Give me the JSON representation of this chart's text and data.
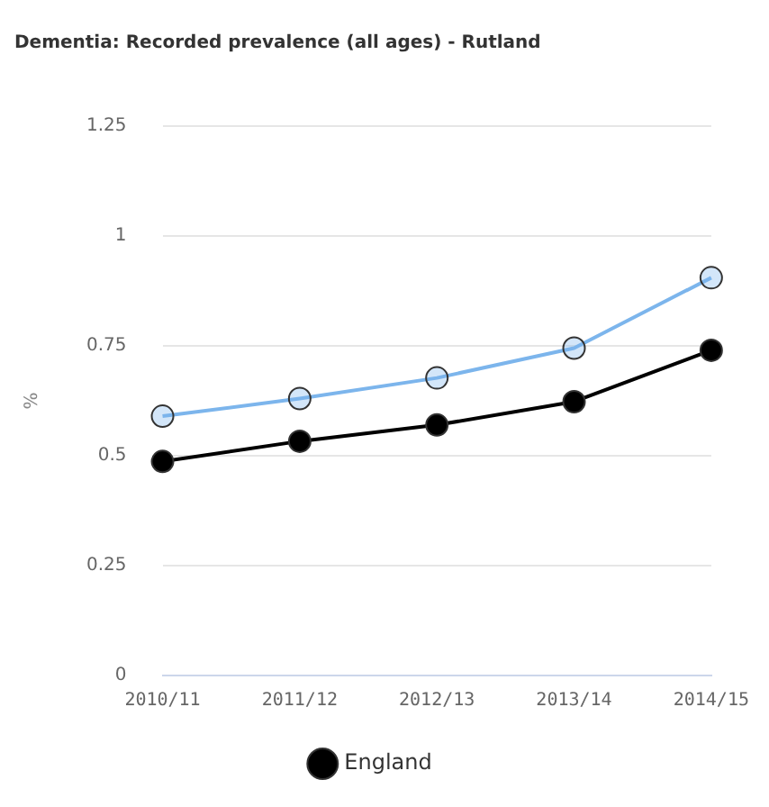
{
  "chart_data": {
    "type": "line",
    "title": "Dementia: Recorded prevalence (all ages) - Rutland",
    "ylabel": "%",
    "categories": [
      "2010/11",
      "2011/12",
      "2012/13",
      "2013/14",
      "2014/15"
    ],
    "series": [
      {
        "color": "#7cb5ec",
        "values": [
          0.59,
          0.63,
          0.677,
          0.745,
          0.905
        ]
      },
      {
        "name": "England",
        "color": "#000000",
        "values": [
          0.487,
          0.533,
          0.57,
          0.623,
          0.74
        ]
      }
    ],
    "ylim": [
      0,
      1.25
    ],
    "yticks": [
      0,
      0.25,
      0.5,
      0.75,
      1,
      1.25
    ],
    "grid": "y",
    "legend": "bottom",
    "marker": "circle"
  }
}
